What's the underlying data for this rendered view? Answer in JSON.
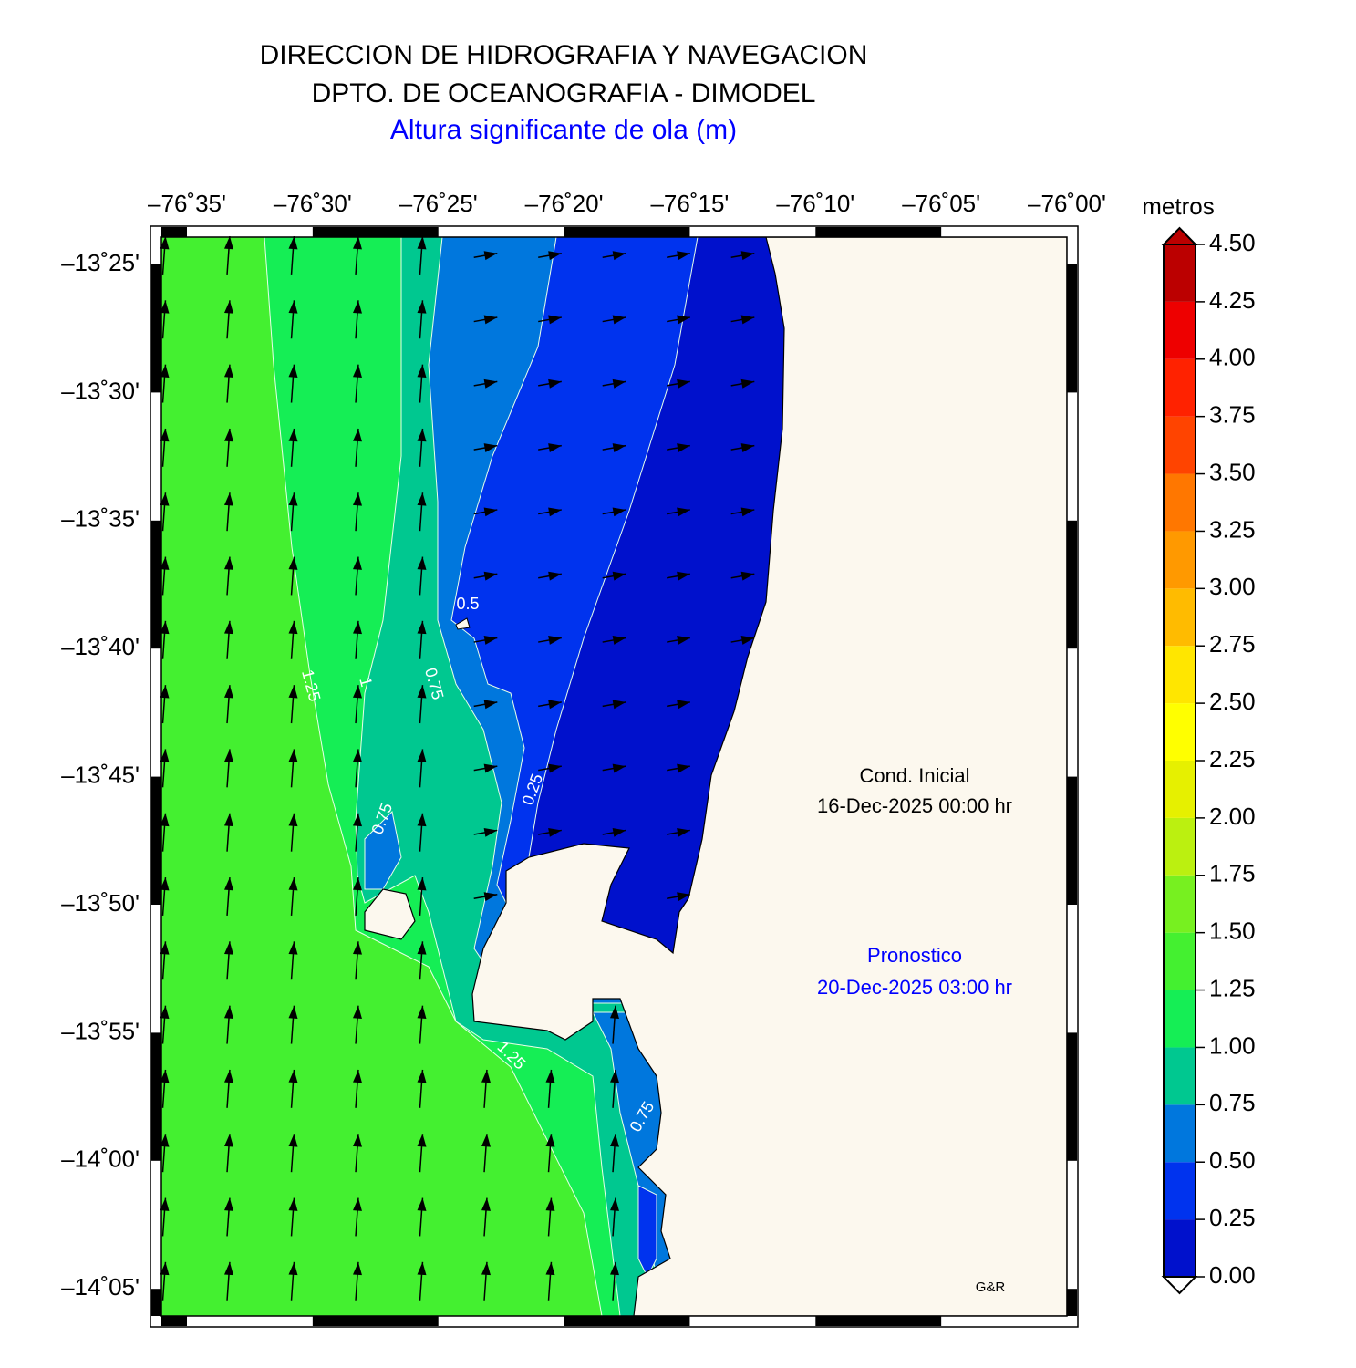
{
  "header": {
    "title": "DIRECCION DE HIDROGRAFIA Y NAVEGACION",
    "subtitle": "DPTO. DE OCEANOGRAFIA - DIMODEL",
    "variable": "Altura significante de ola (m)"
  },
  "map": {
    "lon_labels": [
      "–76˚35'",
      "–76˚30'",
      "–76˚25'",
      "–76˚20'",
      "–76˚15'",
      "–76˚10'",
      "–76˚05'",
      "–76˚00'"
    ],
    "lat_labels": [
      "–13˚25'",
      "–13˚30'",
      "–13˚35'",
      "–13˚40'",
      "–13˚45'",
      "–13˚50'",
      "–13˚55'",
      "–14˚00'",
      "–14˚05'"
    ],
    "contour_labels": [
      "0.5",
      "1.25",
      "1",
      "0.75",
      "0.25",
      "0.75",
      "1.25",
      "0.75"
    ],
    "initial_label": "Cond. Inicial",
    "initial_date": "16-Dec-2025 00:00 hr",
    "forecast_label": "Pronostico",
    "forecast_date": "20-Dec-2025 03:00 hr",
    "credit": "G&R"
  },
  "colorbar": {
    "unit": "metros",
    "ticks": [
      {
        "value": 0,
        "label": "0.00"
      },
      {
        "value": 0.25,
        "label": "0.25"
      },
      {
        "value": 0.5,
        "label": "0.50"
      },
      {
        "value": 0.75,
        "label": "0.75"
      },
      {
        "value": 1,
        "label": "1.00"
      },
      {
        "value": 1.25,
        "label": "1.25"
      },
      {
        "value": 1.5,
        "label": "1.50"
      },
      {
        "value": 1.75,
        "label": "1.75"
      },
      {
        "value": 2,
        "label": "2.00"
      },
      {
        "value": 2.25,
        "label": "2.25"
      },
      {
        "value": 2.5,
        "label": "2.50"
      },
      {
        "value": 2.75,
        "label": "2.75"
      },
      {
        "value": 3,
        "label": "3.00"
      },
      {
        "value": 3.25,
        "label": "3.25"
      },
      {
        "value": 3.5,
        "label": "3.50"
      },
      {
        "value": 3.75,
        "label": "3.75"
      },
      {
        "value": 4,
        "label": "4.00"
      },
      {
        "value": 4.25,
        "label": "4.25"
      },
      {
        "value": 4.5,
        "label": "4.50"
      }
    ],
    "colors": [
      "#0011cc",
      "#0033ee",
      "#0077dd",
      "#00c890",
      "#15ee55",
      "#44f030",
      "#77f020",
      "#bbf010",
      "#e6f000",
      "#ffff00",
      "#ffe600",
      "#ffbb00",
      "#ff9900",
      "#ff7700",
      "#ff4400",
      "#ff2200",
      "#ee0000",
      "#bb0000"
    ]
  }
}
